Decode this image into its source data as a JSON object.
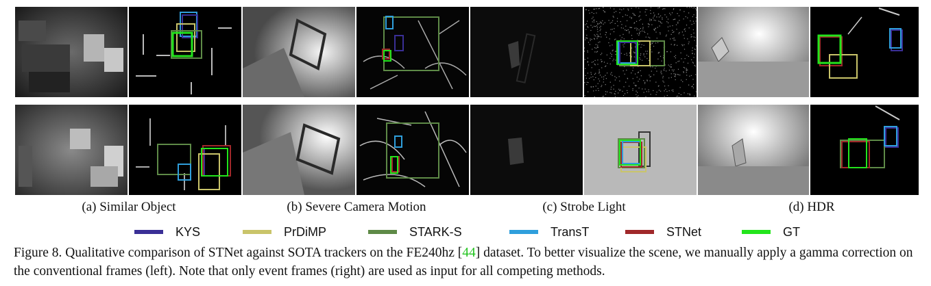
{
  "panels": {
    "a": {
      "caption": "(a) Similar Object"
    },
    "b": {
      "caption": "(b) Severe Camera Motion"
    },
    "c": {
      "caption": "(c) Strobe Light"
    },
    "d": {
      "caption": "(d) HDR"
    }
  },
  "legend": [
    {
      "label": "KYS",
      "color": "#3a2f96"
    },
    {
      "label": "PrDiMP",
      "color": "#c9c46a"
    },
    {
      "label": "STARK-S",
      "color": "#5e8a47"
    },
    {
      "label": "TransT",
      "color": "#2f9fdc"
    },
    {
      "label": "STNet",
      "color": "#a0282a"
    },
    {
      "label": "GT",
      "color": "#23e51c"
    }
  ],
  "figure_caption": {
    "prefix": "Figure 8. Qualitative comparison of STNet against SOTA trackers on the FE240hz [",
    "ref": "44",
    "suffix": "] dataset. To better visualize the scene, we manually apply a gamma correction on the conventional frames (left). Note that only event frames (right) are used as input for all competing methods."
  }
}
